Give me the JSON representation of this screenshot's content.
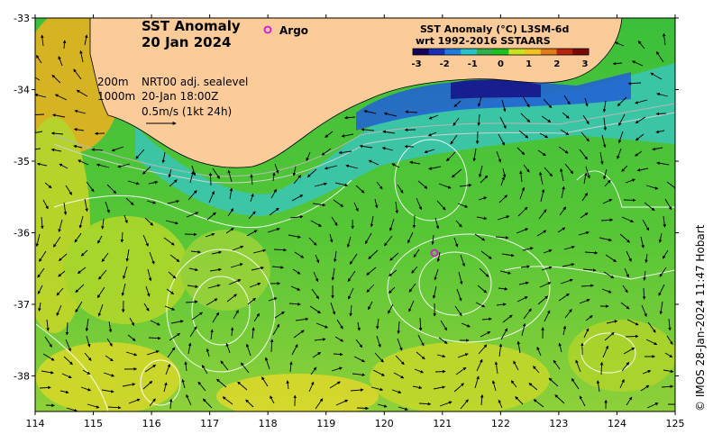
{
  "title": {
    "line1": "SST Anomaly",
    "line2": "20 Jan 2024"
  },
  "argo_label": "Argo",
  "legend": {
    "title_line1": "SST Anomaly (°C) L3SM-6d",
    "title_line2": "wrt 1992-2016 SSTAARS",
    "ticks": [
      "-3",
      "-2",
      "-1",
      "0",
      "1",
      "2",
      "3"
    ],
    "colors": [
      "#16005a",
      "#1a2fb8",
      "#1f7be0",
      "#26c3c8",
      "#2fb04a",
      "#19c21c",
      "#c8e21e",
      "#f2c21f",
      "#e07a17",
      "#b8230f",
      "#7a0a06"
    ]
  },
  "info": {
    "contour_depth_1": "200m",
    "contour_depth_2": "1000m",
    "sealevel_label": "NRT00 adj. sealevel",
    "time_label": "20-Jan 18:00Z",
    "vector_scale": "0.5m/s (1kt 24h)"
  },
  "axes": {
    "lon_ticks": [
      "114",
      "115",
      "116",
      "117",
      "118",
      "119",
      "120",
      "121",
      "122",
      "123",
      "124",
      "125"
    ],
    "lat_ticks": [
      "-33",
      "-34",
      "-35",
      "-36",
      "-37",
      "-38"
    ]
  },
  "credit": "© IMOS 28-Jan-2024 11:47 Hobart",
  "colors": {
    "land": "#fbcb9a",
    "ocean_green": "#2fb83a",
    "coast_cyan": "#3cc8c0",
    "coast_blue": "#2a6fd6",
    "argo_marker": "#e010e0"
  }
}
